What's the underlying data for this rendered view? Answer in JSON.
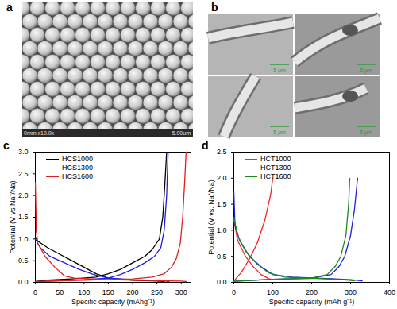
{
  "images": [
    {
      "panel_label": "a",
      "texts": [
        "0mm x10.0k",
        "5.00um"
      ]
    },
    {
      "panel_label": "b",
      "scale_bars": [
        "5 μm",
        "5 μm",
        "5 μm",
        "5 μm"
      ]
    }
  ],
  "chart_data": [
    {
      "panel_label": "c",
      "type": "line",
      "x_label": "Specific capacity (mAhg⁻¹)",
      "y_label": "Potential (V vs.Na⁺/Na)",
      "xlim": [
        0,
        320
      ],
      "ylim": [
        0,
        3
      ],
      "xticks": [
        0,
        50,
        100,
        150,
        200,
        250,
        300
      ],
      "yticks": [
        {
          "value": 0,
          "label": "0.0"
        },
        {
          "value": 0.5,
          "label": "0.5"
        },
        {
          "value": 1,
          "label": "1.0"
        },
        {
          "value": 1.5,
          "label": "1.5"
        },
        {
          "value": 2,
          "label": "2.0"
        },
        {
          "value": 2.5,
          "label": "2.5"
        },
        {
          "value": 3,
          "label": "3.0"
        }
      ],
      "legend": "top-left",
      "series": [
        {
          "name": "HCS1000",
          "color": "#000000",
          "x": [
            0,
            5,
            25,
            50,
            75,
            100,
            125,
            150,
            200,
            250,
            265,
            null,
            0,
            25,
            75,
            125,
            150,
            175,
            200,
            225,
            240,
            255,
            262,
            266,
            270
          ],
          "values": [
            1.05,
            0.95,
            0.8,
            0.65,
            0.5,
            0.35,
            0.2,
            0.1,
            0.05,
            0.03,
            0.02,
            null,
            0.02,
            0.05,
            0.08,
            0.12,
            0.2,
            0.3,
            0.45,
            0.6,
            0.75,
            1.0,
            1.5,
            2.2,
            3.0
          ]
        },
        {
          "name": "HCS1300",
          "color": "#1f1fe0",
          "x": [
            0,
            10,
            30,
            60,
            90,
            120,
            150,
            200,
            270,
            275,
            null,
            0,
            50,
            100,
            150,
            175,
            200,
            225,
            245,
            258,
            265,
            270,
            273
          ],
          "values": [
            1.0,
            0.8,
            0.6,
            0.45,
            0.3,
            0.18,
            0.1,
            0.06,
            0.03,
            0.01,
            null,
            0.01,
            0.04,
            0.06,
            0.1,
            0.18,
            0.3,
            0.45,
            0.6,
            0.8,
            1.2,
            2.0,
            3.0
          ]
        },
        {
          "name": "HCS1600",
          "color": "#e01f1f",
          "x": [
            0,
            2,
            5,
            20,
            40,
            60,
            80,
            150,
            250,
            300,
            310,
            null,
            0,
            100,
            200,
            240,
            265,
            280,
            290,
            298,
            303,
            307,
            310
          ],
          "values": [
            2.3,
            1.2,
            0.9,
            0.6,
            0.35,
            0.15,
            0.1,
            0.06,
            0.04,
            0.03,
            0.02,
            null,
            0.02,
            0.05,
            0.08,
            0.12,
            0.2,
            0.35,
            0.55,
            0.9,
            1.5,
            2.3,
            3.0
          ]
        }
      ]
    },
    {
      "panel_label": "d",
      "type": "line",
      "x_label": "Specific capacity (mAh g⁻¹)",
      "y_label": "Potential (V vs. Na⁺/Na)",
      "xlim": [
        0,
        400
      ],
      "ylim": [
        0,
        2.5
      ],
      "xticks": [
        0,
        100,
        200,
        300,
        400
      ],
      "yticks": [
        {
          "value": 0,
          "label": "0.0"
        },
        {
          "value": 0.5,
          "label": "0.5"
        },
        {
          "value": 1,
          "label": "1.0"
        },
        {
          "value": 1.5,
          "label": "1.5"
        },
        {
          "value": 2,
          "label": "2.0"
        },
        {
          "value": 2.5,
          "label": "2.5"
        }
      ],
      "legend": "top-left",
      "series": [
        {
          "name": "HCT1000",
          "color": "#ff2020",
          "x": [
            0,
            10,
            30,
            50,
            70,
            90,
            100,
            null,
            0,
            20,
            40,
            60,
            80,
            95,
            100
          ],
          "values": [
            1.2,
            0.8,
            0.5,
            0.3,
            0.15,
            0.07,
            0.05,
            null,
            0.02,
            0.2,
            0.45,
            0.75,
            1.2,
            1.7,
            2.0
          ]
        },
        {
          "name": "HCT1300",
          "color": "#1f1fe0",
          "x": [
            0,
            3,
            15,
            40,
            70,
            100,
            150,
            250,
            300,
            330,
            null,
            0,
            100,
            200,
            250,
            270,
            285,
            300,
            310,
            318
          ],
          "values": [
            1.75,
            1.1,
            0.8,
            0.5,
            0.3,
            0.15,
            0.1,
            0.07,
            0.05,
            0.03,
            null,
            0.02,
            0.06,
            0.08,
            0.15,
            0.3,
            0.5,
            0.9,
            1.4,
            2.0
          ]
        },
        {
          "name": "HCT1600",
          "color": "#1a8a1a",
          "x": [
            0,
            10,
            30,
            60,
            90,
            130,
            200,
            280,
            310,
            null,
            0,
            100,
            200,
            240,
            260,
            275,
            288,
            295,
            298
          ],
          "values": [
            1.25,
            0.9,
            0.6,
            0.35,
            0.18,
            0.1,
            0.08,
            0.05,
            0.03,
            null,
            0.02,
            0.06,
            0.08,
            0.15,
            0.3,
            0.5,
            0.9,
            1.5,
            2.0
          ]
        }
      ]
    }
  ]
}
